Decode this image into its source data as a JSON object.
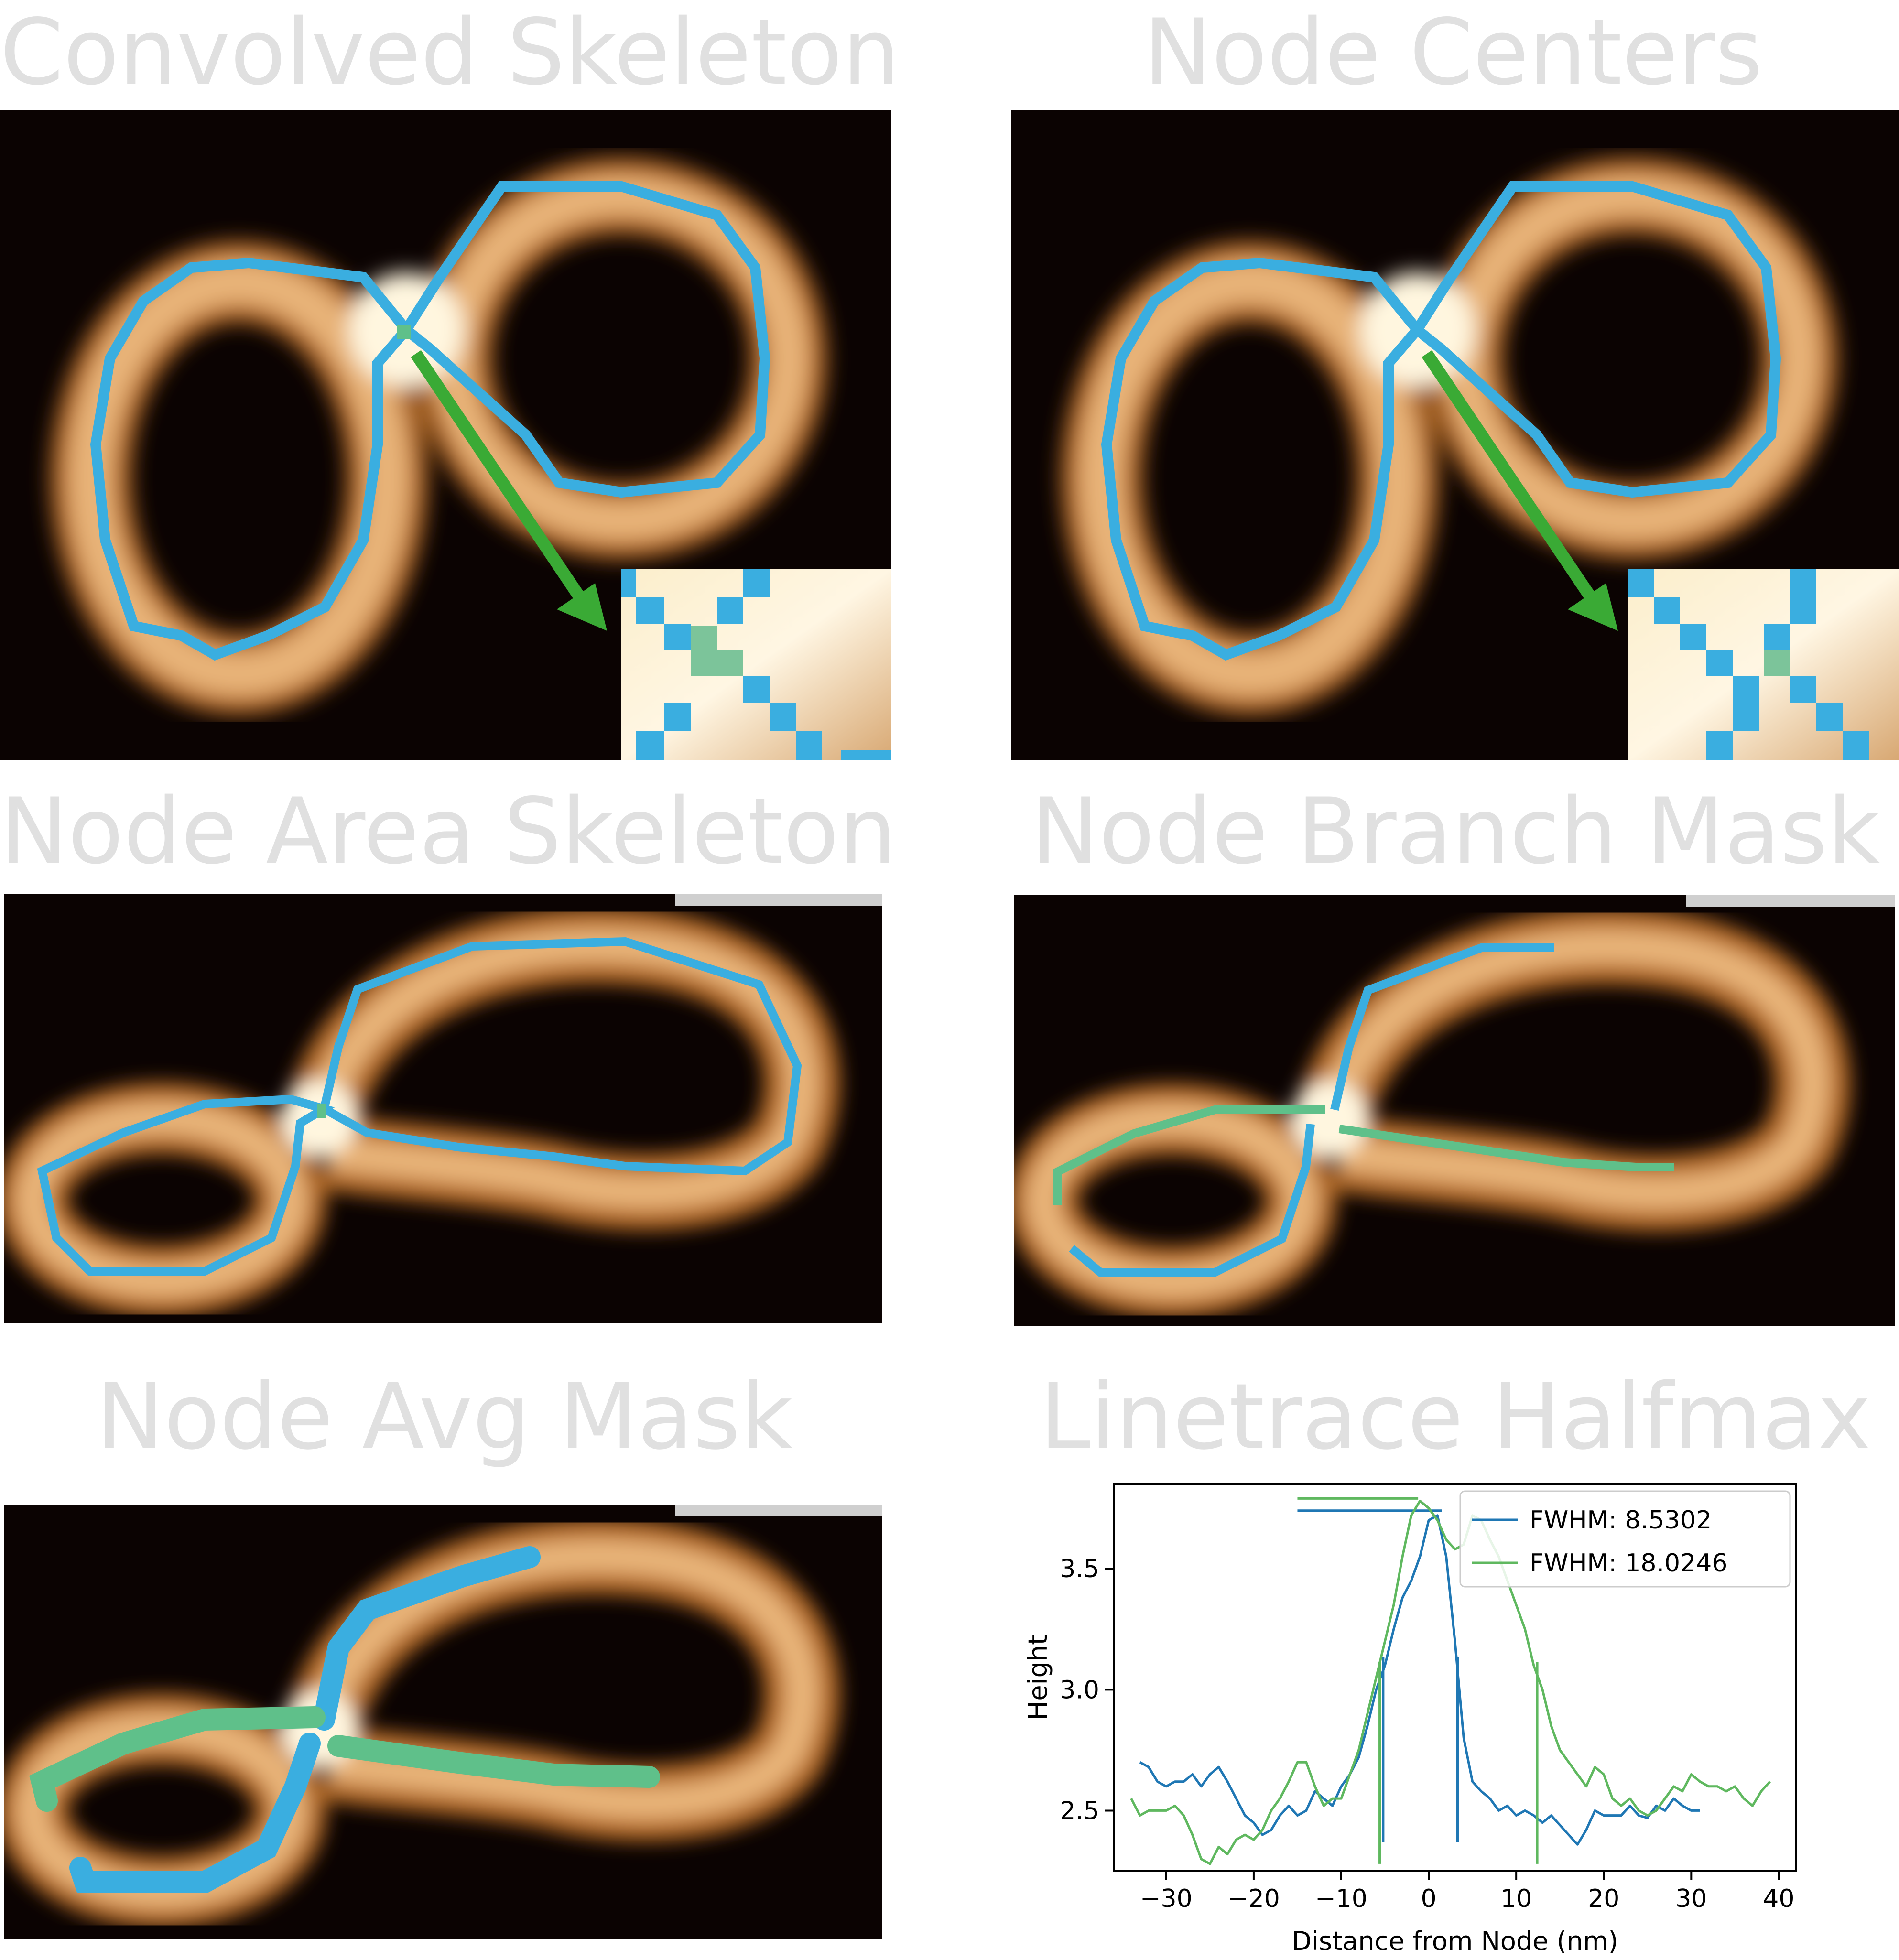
{
  "titles": {
    "convolved": "Convolved Skeleton",
    "centers": "Node Centers",
    "area": "Node Area Skeleton",
    "branch": "Node Branch Mask",
    "avg": "Node Avg Mask",
    "linetrace": "Linetrace Halfmax"
  },
  "colors": {
    "skeleton": "#3aaee0",
    "node": "#5fc08a",
    "arrow": "#3aaa35",
    "background": "#0b0302",
    "title": "#e0e0e0",
    "series_blue": "#1f77b4",
    "series_green": "#5fb85f"
  },
  "chart_data": {
    "type": "line",
    "title": "",
    "xlabel": "Distance from Node (nm)",
    "ylabel": "Height",
    "xlim": [
      -36,
      42
    ],
    "ylim": [
      2.25,
      3.85
    ],
    "xticks": [
      -30,
      -20,
      -10,
      0,
      10,
      20,
      30,
      40
    ],
    "xtick_labels": [
      "−30",
      "−20",
      "−10",
      "0",
      "10",
      "20",
      "30",
      "40"
    ],
    "yticks": [
      2.5,
      3.0,
      3.5
    ],
    "ytick_labels": [
      "2.5",
      "3.0",
      "3.5"
    ],
    "grid": false,
    "legend_position": "top-right",
    "series": [
      {
        "name": "FWHM: 8.5302",
        "color": "#1f77b4",
        "x": [
          -33,
          -32,
          -31,
          -30,
          -29,
          -28,
          -27,
          -26,
          -25,
          -24,
          -23,
          -22,
          -21,
          -20,
          -19,
          -18,
          -17,
          -16,
          -15,
          -14,
          -13,
          -12,
          -11,
          -10,
          -9,
          -8,
          -7,
          -6,
          -5,
          -4,
          -3,
          -2,
          -1,
          0,
          1,
          2,
          3,
          4,
          5,
          6,
          7,
          8,
          9,
          10,
          11,
          12,
          13,
          14,
          15,
          16,
          17,
          18,
          19,
          20,
          21,
          22,
          23,
          24,
          25,
          26,
          27,
          28,
          29,
          30,
          31
        ],
        "y": [
          2.7,
          2.68,
          2.62,
          2.6,
          2.62,
          2.62,
          2.65,
          2.6,
          2.65,
          2.68,
          2.62,
          2.55,
          2.48,
          2.45,
          2.4,
          2.42,
          2.48,
          2.52,
          2.48,
          2.5,
          2.58,
          2.55,
          2.52,
          2.6,
          2.65,
          2.72,
          2.85,
          3.0,
          3.1,
          3.25,
          3.38,
          3.45,
          3.55,
          3.7,
          3.72,
          3.55,
          3.2,
          2.8,
          2.62,
          2.58,
          2.55,
          2.5,
          2.52,
          2.48,
          2.5,
          2.48,
          2.45,
          2.48,
          2.44,
          2.4,
          2.36,
          2.42,
          2.5,
          2.48,
          2.48,
          2.48,
          2.52,
          2.48,
          2.47,
          2.52,
          2.5,
          2.55,
          2.52,
          2.5,
          2.5
        ],
        "fwhm": 8.5302,
        "halfmax_bounds": [
          -5.2,
          3.3
        ],
        "max_height": 3.74,
        "hline_x": [
          -15,
          1.5
        ],
        "vline_bottom": 2.37
      },
      {
        "name": "FWHM: 18.0246",
        "color": "#5fb85f",
        "x": [
          -34,
          -33,
          -32,
          -31,
          -30,
          -29,
          -28,
          -27,
          -26,
          -25,
          -24,
          -23,
          -22,
          -21,
          -20,
          -19,
          -18,
          -17,
          -16,
          -15,
          -14,
          -13,
          -12,
          -11,
          -10,
          -9,
          -8,
          -7,
          -6,
          -5,
          -4,
          -3,
          -2,
          -1,
          0,
          1,
          2,
          3,
          4,
          5,
          6,
          7,
          8,
          9,
          10,
          11,
          12,
          13,
          14,
          15,
          16,
          17,
          18,
          19,
          20,
          21,
          22,
          23,
          24,
          25,
          26,
          27,
          28,
          29,
          30,
          31,
          32,
          33,
          34,
          35,
          36,
          37,
          38,
          39
        ],
        "y": [
          2.55,
          2.48,
          2.5,
          2.5,
          2.5,
          2.52,
          2.48,
          2.4,
          2.3,
          2.28,
          2.35,
          2.32,
          2.38,
          2.4,
          2.38,
          2.42,
          2.5,
          2.55,
          2.62,
          2.7,
          2.7,
          2.6,
          2.52,
          2.55,
          2.55,
          2.65,
          2.75,
          2.9,
          3.05,
          3.2,
          3.35,
          3.55,
          3.72,
          3.78,
          3.75,
          3.7,
          3.62,
          3.58,
          3.6,
          3.72,
          3.7,
          3.62,
          3.55,
          3.45,
          3.35,
          3.25,
          3.1,
          3.0,
          2.85,
          2.75,
          2.7,
          2.65,
          2.6,
          2.68,
          2.65,
          2.55,
          2.52,
          2.55,
          2.5,
          2.48,
          2.5,
          2.55,
          2.6,
          2.58,
          2.65,
          2.62,
          2.6,
          2.6,
          2.58,
          2.6,
          2.55,
          2.52,
          2.58,
          2.62
        ],
        "fwhm": 18.0246,
        "halfmax_bounds": [
          -5.6,
          12.4
        ],
        "max_height": 3.79,
        "hline_x": [
          -15,
          -1.2
        ],
        "vline_bottom": 2.28
      }
    ]
  }
}
